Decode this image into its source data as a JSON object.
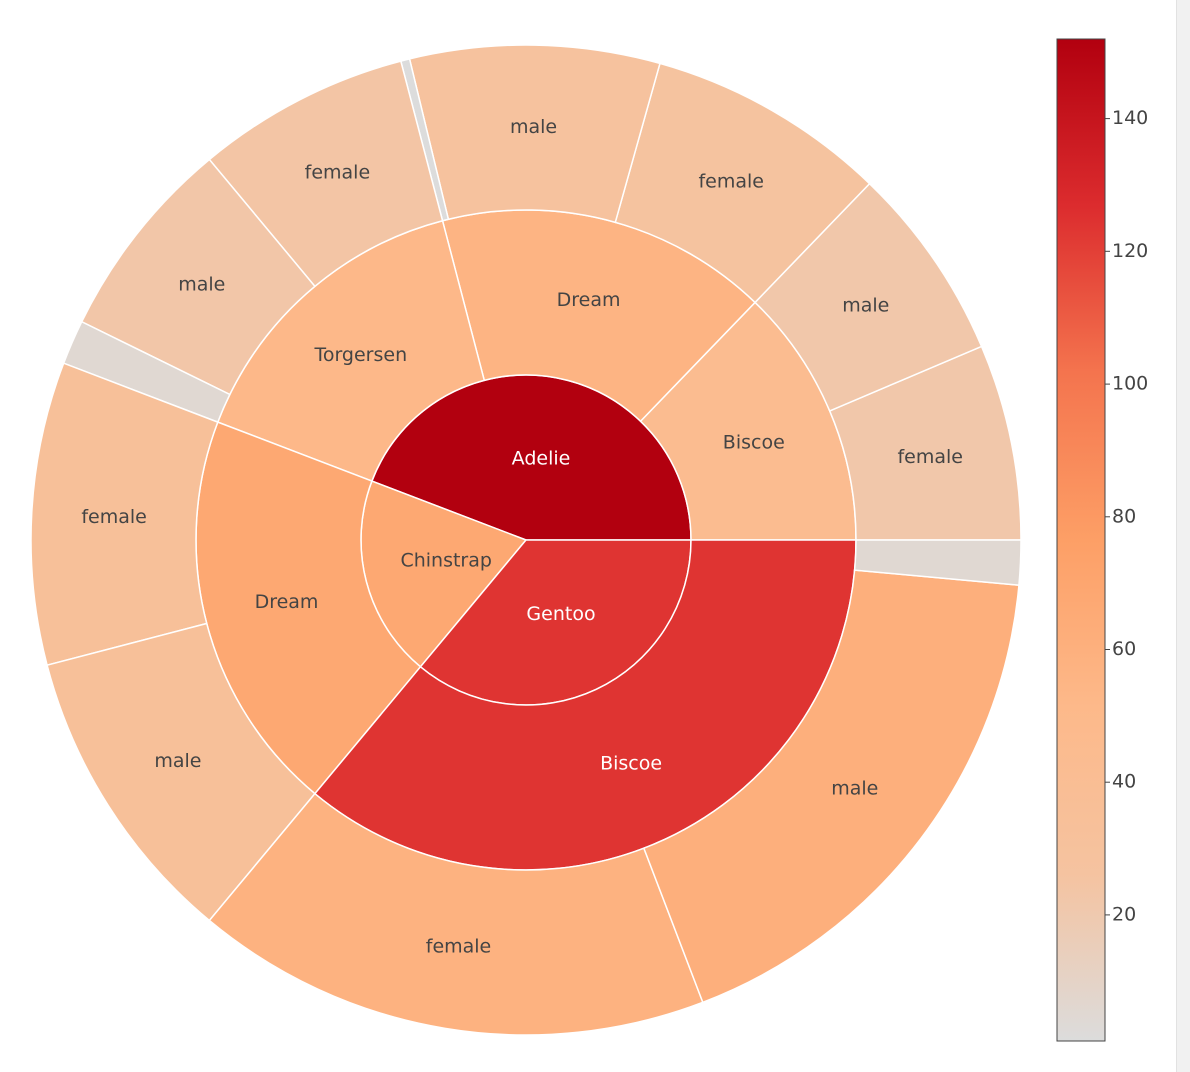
{
  "chart_data": {
    "type": "sunburst",
    "total": 344,
    "nodes": [
      {
        "id": "adelie",
        "label": "Adelie",
        "value": 152,
        "children": [
          {
            "id": "adelie-biscoe",
            "label": "Biscoe",
            "value": 44,
            "children": [
              {
                "id": "adelie-biscoe-female",
                "label": "female",
                "value": 22
              },
              {
                "id": "adelie-biscoe-male",
                "label": "male",
                "value": 22
              }
            ]
          },
          {
            "id": "adelie-dream",
            "label": "Dream",
            "value": 56,
            "children": [
              {
                "id": "adelie-dream-female",
                "label": "female",
                "value": 27
              },
              {
                "id": "adelie-dream-male",
                "label": "male",
                "value": 28
              },
              {
                "id": "adelie-dream-missing",
                "label": "",
                "value": 1
              }
            ]
          },
          {
            "id": "adelie-torgersen",
            "label": "Torgersen",
            "value": 52,
            "children": [
              {
                "id": "adelie-torgersen-female",
                "label": "female",
                "value": 24
              },
              {
                "id": "adelie-torgersen-male",
                "label": "male",
                "value": 23
              },
              {
                "id": "adelie-torgersen-missing",
                "label": "",
                "value": 5
              }
            ]
          }
        ]
      },
      {
        "id": "chinstrap",
        "label": "Chinstrap",
        "value": 68,
        "children": [
          {
            "id": "chinstrap-dream",
            "label": "Dream",
            "value": 68,
            "children": [
              {
                "id": "chinstrap-dream-female",
                "label": "female",
                "value": 34
              },
              {
                "id": "chinstrap-dream-male",
                "label": "male",
                "value": 34
              }
            ]
          }
        ]
      },
      {
        "id": "gentoo",
        "label": "Gentoo",
        "value": 124,
        "children": [
          {
            "id": "gentoo-biscoe",
            "label": "Biscoe",
            "value": 124,
            "children": [
              {
                "id": "gentoo-biscoe-female",
                "label": "female",
                "value": 58
              },
              {
                "id": "gentoo-biscoe-male",
                "label": "male",
                "value": 61
              },
              {
                "id": "gentoo-biscoe-missing",
                "label": "",
                "value": 5
              }
            ]
          }
        ]
      }
    ],
    "colorscale": {
      "range": [
        1,
        152
      ],
      "ticks": [
        20,
        40,
        60,
        80,
        100,
        120,
        140
      ],
      "stops": [
        "#dcdcdc",
        "#f5c3a0",
        "#fdb98a",
        "#fd9f66",
        "#f4744e",
        "#dc2c2e",
        "#b2000f"
      ],
      "orientation": "vertical",
      "placement": "right"
    }
  }
}
